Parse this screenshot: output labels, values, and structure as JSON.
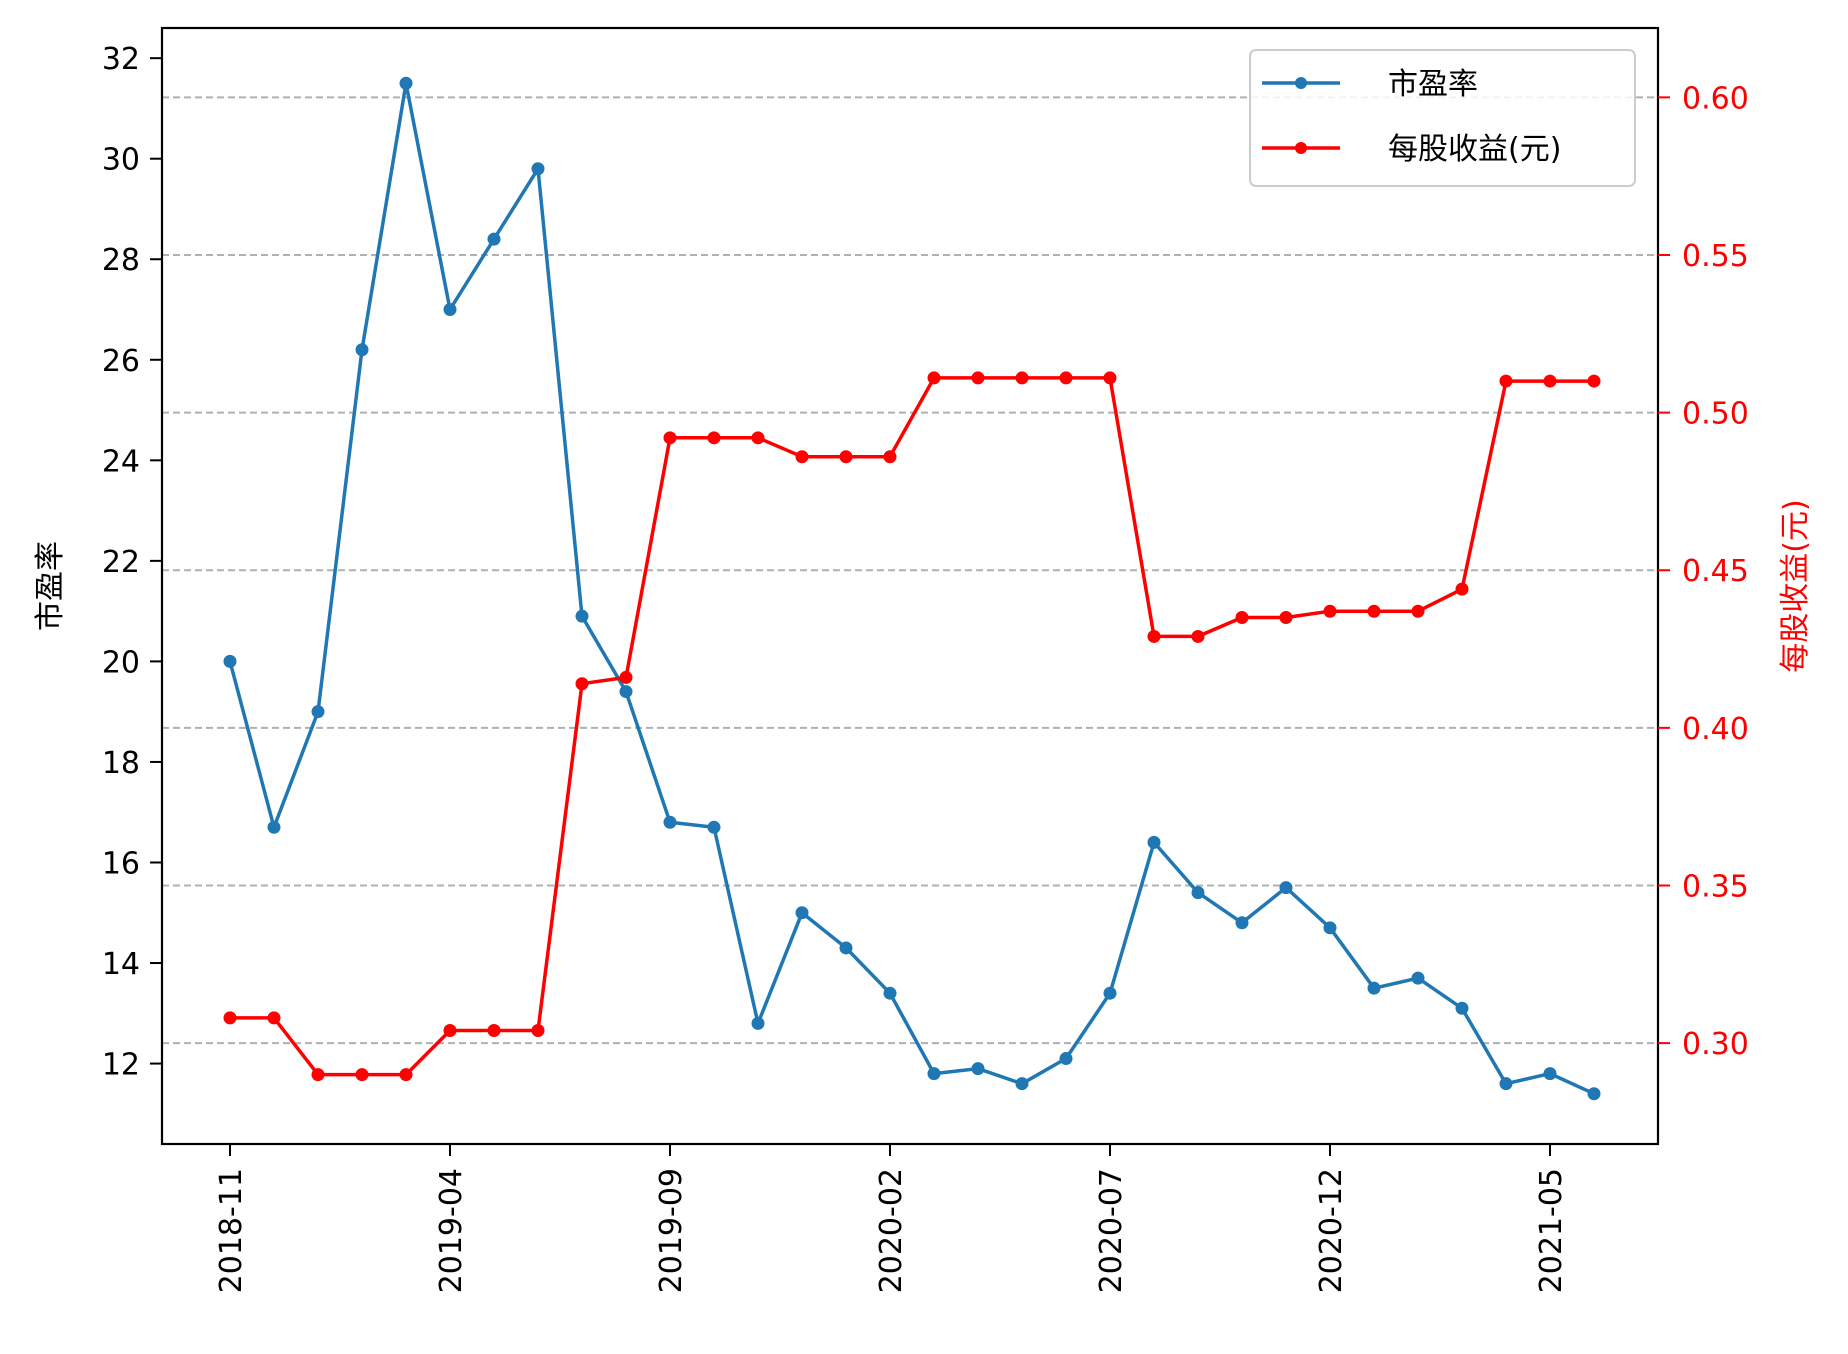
{
  "chart_data": {
    "type": "line",
    "title": "",
    "xlabel": "",
    "ylabel": "市盈率",
    "ylabel_right": "每股收益(元)",
    "x": [
      "2018-11",
      "2018-12",
      "2019-01",
      "2019-02",
      "2019-03",
      "2019-04",
      "2019-05",
      "2019-06",
      "2019-07",
      "2019-08",
      "2019-09",
      "2019-10",
      "2019-11",
      "2019-12",
      "2020-01",
      "2020-02",
      "2020-03",
      "2020-04",
      "2020-05",
      "2020-06",
      "2020-07",
      "2020-08",
      "2020-09",
      "2020-10",
      "2020-11",
      "2020-12",
      "2021-01",
      "2021-02",
      "2021-03",
      "2021-04",
      "2021-05",
      "2021-06"
    ],
    "xticks": [
      "2018-11",
      "2019-04",
      "2019-09",
      "2020-02",
      "2020-07",
      "2020-12",
      "2021-05"
    ],
    "ylim": [
      10.4,
      32.6
    ],
    "ylim_right": [
      0.268,
      0.622
    ],
    "yticks": [
      "12",
      "14",
      "16",
      "18",
      "20",
      "22",
      "24",
      "26",
      "28",
      "30",
      "32"
    ],
    "yticks_right": [
      "0.30",
      "0.35",
      "0.40",
      "0.45",
      "0.50",
      "0.55",
      "0.60"
    ],
    "grid": "horizontal dashed on right axis",
    "legend_position": "upper-right",
    "series": [
      {
        "name": "市盈率",
        "axis": "left",
        "color": "#1f77b4",
        "values": [
          20.0,
          16.7,
          19.0,
          26.2,
          31.5,
          27.0,
          28.4,
          29.8,
          20.9,
          19.4,
          16.8,
          16.7,
          12.8,
          15.0,
          14.3,
          13.4,
          11.8,
          11.9,
          11.6,
          12.1,
          13.4,
          16.4,
          15.4,
          14.8,
          15.5,
          14.7,
          13.5,
          13.7,
          13.1,
          11.6,
          11.8,
          11.4
        ]
      },
      {
        "name": "每股收益(元)",
        "axis": "right",
        "color": "#ff0000",
        "values": [
          0.308,
          0.308,
          0.29,
          0.29,
          0.29,
          0.304,
          0.304,
          0.304,
          0.414,
          0.416,
          0.492,
          0.492,
          0.492,
          0.486,
          0.486,
          0.486,
          0.511,
          0.511,
          0.511,
          0.511,
          0.511,
          0.429,
          0.429,
          0.435,
          0.435,
          0.437,
          0.437,
          0.437,
          0.444,
          0.51,
          0.51,
          0.51
        ]
      }
    ]
  }
}
